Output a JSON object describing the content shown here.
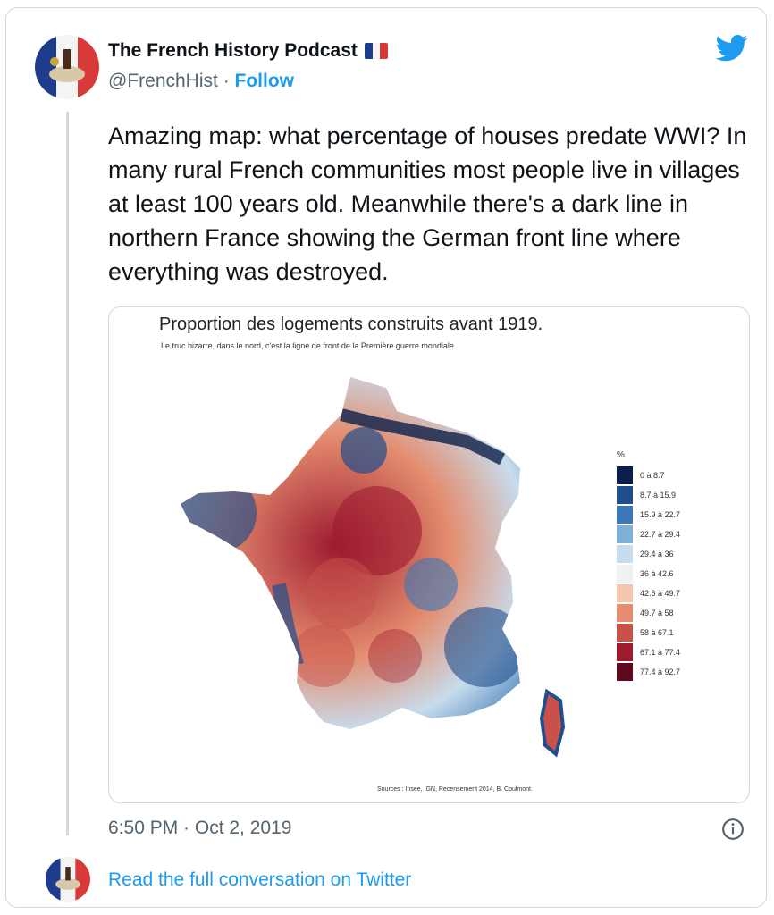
{
  "account": {
    "display_name": "The French History Podcast",
    "handle": "@FrenchHist",
    "separator": "·",
    "follow_label": "Follow"
  },
  "tweet": {
    "text": "Amazing map: what percentage of houses predate WWI? In many rural French communities most people live in villages at least 100 years old. Meanwhile there's a dark line in northern France showing the German front line where everything was destroyed.",
    "timestamp": "6:50 PM · Oct 2, 2019"
  },
  "media": {
    "title": "Proportion des logements construits avant 1919.",
    "subtitle": "Le truc bizarre, dans le nord, c'est la ligne de front de la Première guerre mondiale",
    "legend_unit": "%",
    "legend": [
      {
        "label": "0 à 8.7",
        "color": "#0b1f4a"
      },
      {
        "label": "8.7 à 15.9",
        "color": "#1f4e8c"
      },
      {
        "label": "15.9 à 22.7",
        "color": "#3b78b5"
      },
      {
        "label": "22.7 à 29.4",
        "color": "#7fb1d6"
      },
      {
        "label": "29.4 à 36",
        "color": "#c7dcec"
      },
      {
        "label": "36 à 42.6",
        "color": "#f1f1f1"
      },
      {
        "label": "42.6 à 49.7",
        "color": "#f5c6ae"
      },
      {
        "label": "49.7 à 58",
        "color": "#e48d6f"
      },
      {
        "label": "58 à 67.1",
        "color": "#c8524a"
      },
      {
        "label": "67.1 à 77.4",
        "color": "#9e1b30"
      },
      {
        "label": "77.4 à 92.7",
        "color": "#5c0a1c"
      }
    ],
    "sources": "Sources : Insee, IGN, Recensement 2014, B. Coulmont."
  },
  "footer": {
    "read_more": "Read the full conversation on Twitter"
  },
  "colors": {
    "accent": "#1d9bf0",
    "secondary_text": "#536471",
    "border": "#cfd9de"
  },
  "icons": {
    "brand": "twitter-bird-icon",
    "info": "info-icon",
    "flag": "france-flag-icon"
  }
}
